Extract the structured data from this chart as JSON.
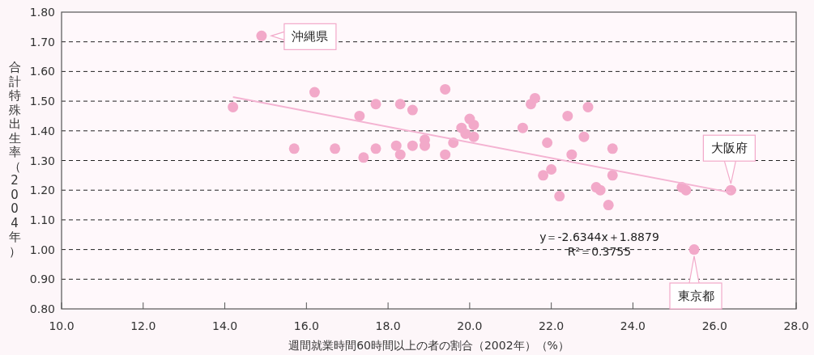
{
  "chart_data": {
    "type": "scatter",
    "xlabel": "週間就業時間60時間以上の者の割合（2002年）（%）",
    "ylabel": "合計特殊出生率（2004年）",
    "xlim": [
      10,
      28
    ],
    "ylim": [
      0.8,
      1.8
    ],
    "xticks": [
      {
        "value": 10,
        "label": "10.0"
      },
      {
        "value": 12,
        "label": "12.0"
      },
      {
        "value": 14,
        "label": "14.0"
      },
      {
        "value": 16,
        "label": "16.0"
      },
      {
        "value": 18,
        "label": "18.0"
      },
      {
        "value": 20,
        "label": "20.0"
      },
      {
        "value": 22,
        "label": "22.0"
      },
      {
        "value": 24,
        "label": "24.0"
      },
      {
        "value": 26,
        "label": "26.0"
      },
      {
        "value": 28,
        "label": "28.0"
      }
    ],
    "yticks": [
      {
        "value": 0.8,
        "label": "0.80"
      },
      {
        "value": 0.9,
        "label": "0.90"
      },
      {
        "value": 1.0,
        "label": "1.00"
      },
      {
        "value": 1.1,
        "label": "1.10"
      },
      {
        "value": 1.2,
        "label": "1.20"
      },
      {
        "value": 1.3,
        "label": "1.30"
      },
      {
        "value": 1.4,
        "label": "1.40"
      },
      {
        "value": 1.5,
        "label": "1.50"
      },
      {
        "value": 1.6,
        "label": "1.60"
      },
      {
        "value": 1.7,
        "label": "1.70"
      },
      {
        "value": 1.8,
        "label": "1.80"
      }
    ],
    "grid": "y",
    "series": [
      {
        "marker": "circle",
        "color": "#f2a9c9",
        "x": [
          14.9,
          14.2,
          15.7,
          16.2,
          16.7,
          17.3,
          17.4,
          17.7,
          17.7,
          18.2,
          18.3,
          18.3,
          18.6,
          18.6,
          18.9,
          18.9,
          19.4,
          19.4,
          19.6,
          19.8,
          19.9,
          20.0,
          20.1,
          20.1,
          21.3,
          21.5,
          21.6,
          21.8,
          21.9,
          22.0,
          22.2,
          22.4,
          22.5,
          22.8,
          22.9,
          23.1,
          23.2,
          23.4,
          23.5,
          23.5,
          25.2,
          25.3,
          25.5,
          26.4
        ],
        "values": [
          1.72,
          1.48,
          1.34,
          1.53,
          1.34,
          1.45,
          1.31,
          1.34,
          1.49,
          1.35,
          1.32,
          1.49,
          1.35,
          1.47,
          1.37,
          1.35,
          1.54,
          1.32,
          1.36,
          1.41,
          1.39,
          1.44,
          1.42,
          1.38,
          1.41,
          1.49,
          1.51,
          1.25,
          1.36,
          1.27,
          1.18,
          1.45,
          1.32,
          1.38,
          1.48,
          1.21,
          1.2,
          1.15,
          1.25,
          1.34,
          1.21,
          1.2,
          1.0,
          1.2
        ]
      },
      {
        "type": "line",
        "color": "#f4b3d2",
        "x": [
          14.2,
          26.4
        ],
        "values": [
          1.514,
          1.192
        ]
      }
    ],
    "annotations": [
      {
        "text": "沖縄県",
        "x": 14.9,
        "y": 1.72
      },
      {
        "text": "大阪府",
        "x": 26.4,
        "y": 1.2
      },
      {
        "text": "東京都",
        "x": 25.5,
        "y": 1.0
      },
      "y＝-2.6344x＋1.8879",
      "R²＝0.3755"
    ]
  }
}
